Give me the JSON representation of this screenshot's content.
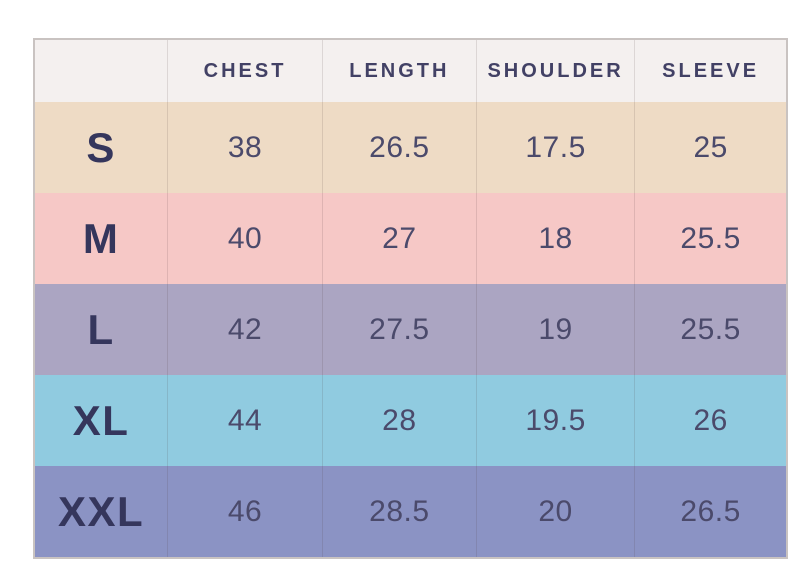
{
  "page_bg": "#ffffff",
  "chart_data": {
    "type": "table",
    "columns": [
      "",
      "CHEST",
      "LENGTH",
      "SHOULDER",
      "SLEEVE"
    ],
    "rows": [
      {
        "size": "S",
        "values": [
          "38",
          "26.5",
          "17.5",
          "25"
        ],
        "row_color": "#eedbc5"
      },
      {
        "size": "M",
        "values": [
          "40",
          "27",
          "18",
          "25.5"
        ],
        "row_color": "#f6c8c6"
      },
      {
        "size": "L",
        "values": [
          "42",
          "27.5",
          "19",
          "25.5"
        ],
        "row_color": "#aba5c2"
      },
      {
        "size": "XL",
        "values": [
          "44",
          "28",
          "19.5",
          "26"
        ],
        "row_color": "#90cbe0"
      },
      {
        "size": "XXL",
        "values": [
          "46",
          "28.5",
          "20",
          "26.5"
        ],
        "row_color": "#8b93c4"
      }
    ],
    "colors": {
      "header_bg": "#f4f0ef",
      "header_text": "#424165",
      "size_text": "#35365c",
      "value_text": "#4b4a6b",
      "border": "#c9c3c1",
      "grid_line": "rgba(75,55,55,0.14)"
    }
  }
}
